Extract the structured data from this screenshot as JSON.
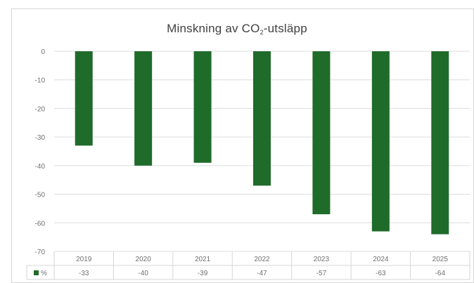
{
  "chart_data": {
    "type": "bar",
    "title": {
      "prefix": "Minskning av CO",
      "subscript": "2",
      "suffix": "-utsläpp"
    },
    "categories": [
      "2019",
      "2020",
      "2021",
      "2022",
      "2023",
      "2024",
      "2025"
    ],
    "series": [
      {
        "name": "%",
        "values": [
          -33,
          -40,
          -39,
          -47,
          -57,
          -63,
          -64
        ],
        "color": "#1f6b2a"
      }
    ],
    "data_table_values": [
      "-33",
      "-40",
      "-39",
      "-47",
      "-57",
      "-63",
      "-64"
    ],
    "ylim": [
      -70,
      0
    ],
    "yticks": [
      "0",
      "-10",
      "-20",
      "-30",
      "-40",
      "-50",
      "-60",
      "-70"
    ],
    "grid": true,
    "data_table": true,
    "legend_placement": "data-table"
  }
}
